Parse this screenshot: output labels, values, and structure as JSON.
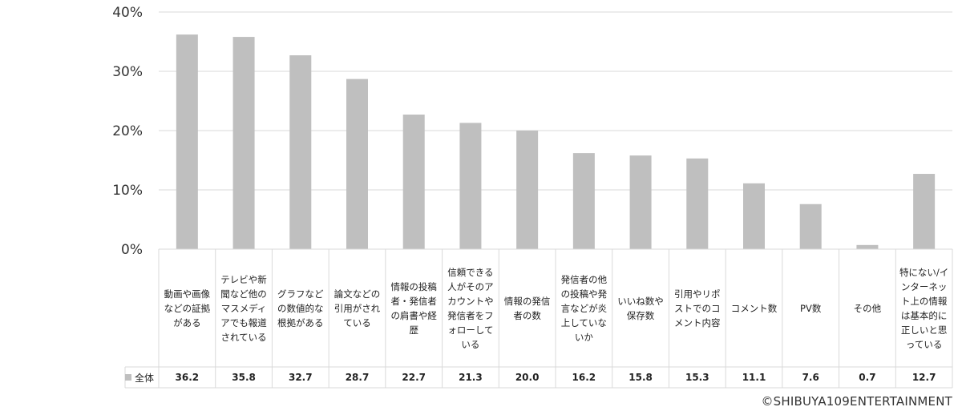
{
  "chart_data": {
    "type": "bar",
    "categories": [
      "動画や画像などの証拠がある",
      "テレビや新聞など他のマスメディアでも報道されている",
      "グラフなどの数値的な根拠がある",
      "論文などの引用がされている",
      "情報の投稿者・発信者の肩書や経歴",
      "信頼できる人がそのアカウントや発信者をフォローしている",
      "情報の発信者の数",
      "発信者の他の投稿や発言などが炎上していないか",
      "いいね数や保存数",
      "引用やリポストでのコメント内容",
      "コメント数",
      "PV数",
      "その他",
      "特にない/インターネット上の情報は基本的に正しいと思っている"
    ],
    "series": [
      {
        "name": "全体",
        "values": [
          36.2,
          35.8,
          32.7,
          28.7,
          22.7,
          21.3,
          20.0,
          16.2,
          15.8,
          15.3,
          11.1,
          7.6,
          0.7,
          12.7
        ]
      }
    ],
    "value_labels": [
      "36.2",
      "35.8",
      "32.7",
      "28.7",
      "22.7",
      "21.3",
      "20.0",
      "16.2",
      "15.8",
      "15.3",
      "11.1",
      "7.6",
      "0.7",
      "12.7"
    ],
    "ylim": [
      0,
      40
    ],
    "yticks": [
      "0%",
      "10%",
      "20%",
      "30%",
      "40%"
    ],
    "grid": true,
    "bar_color": "#bfbfbf",
    "legend_position": "bottom-left (data table)"
  },
  "footer": {
    "copyright": "©SHIBUYA109ENTERTAINMENT"
  }
}
